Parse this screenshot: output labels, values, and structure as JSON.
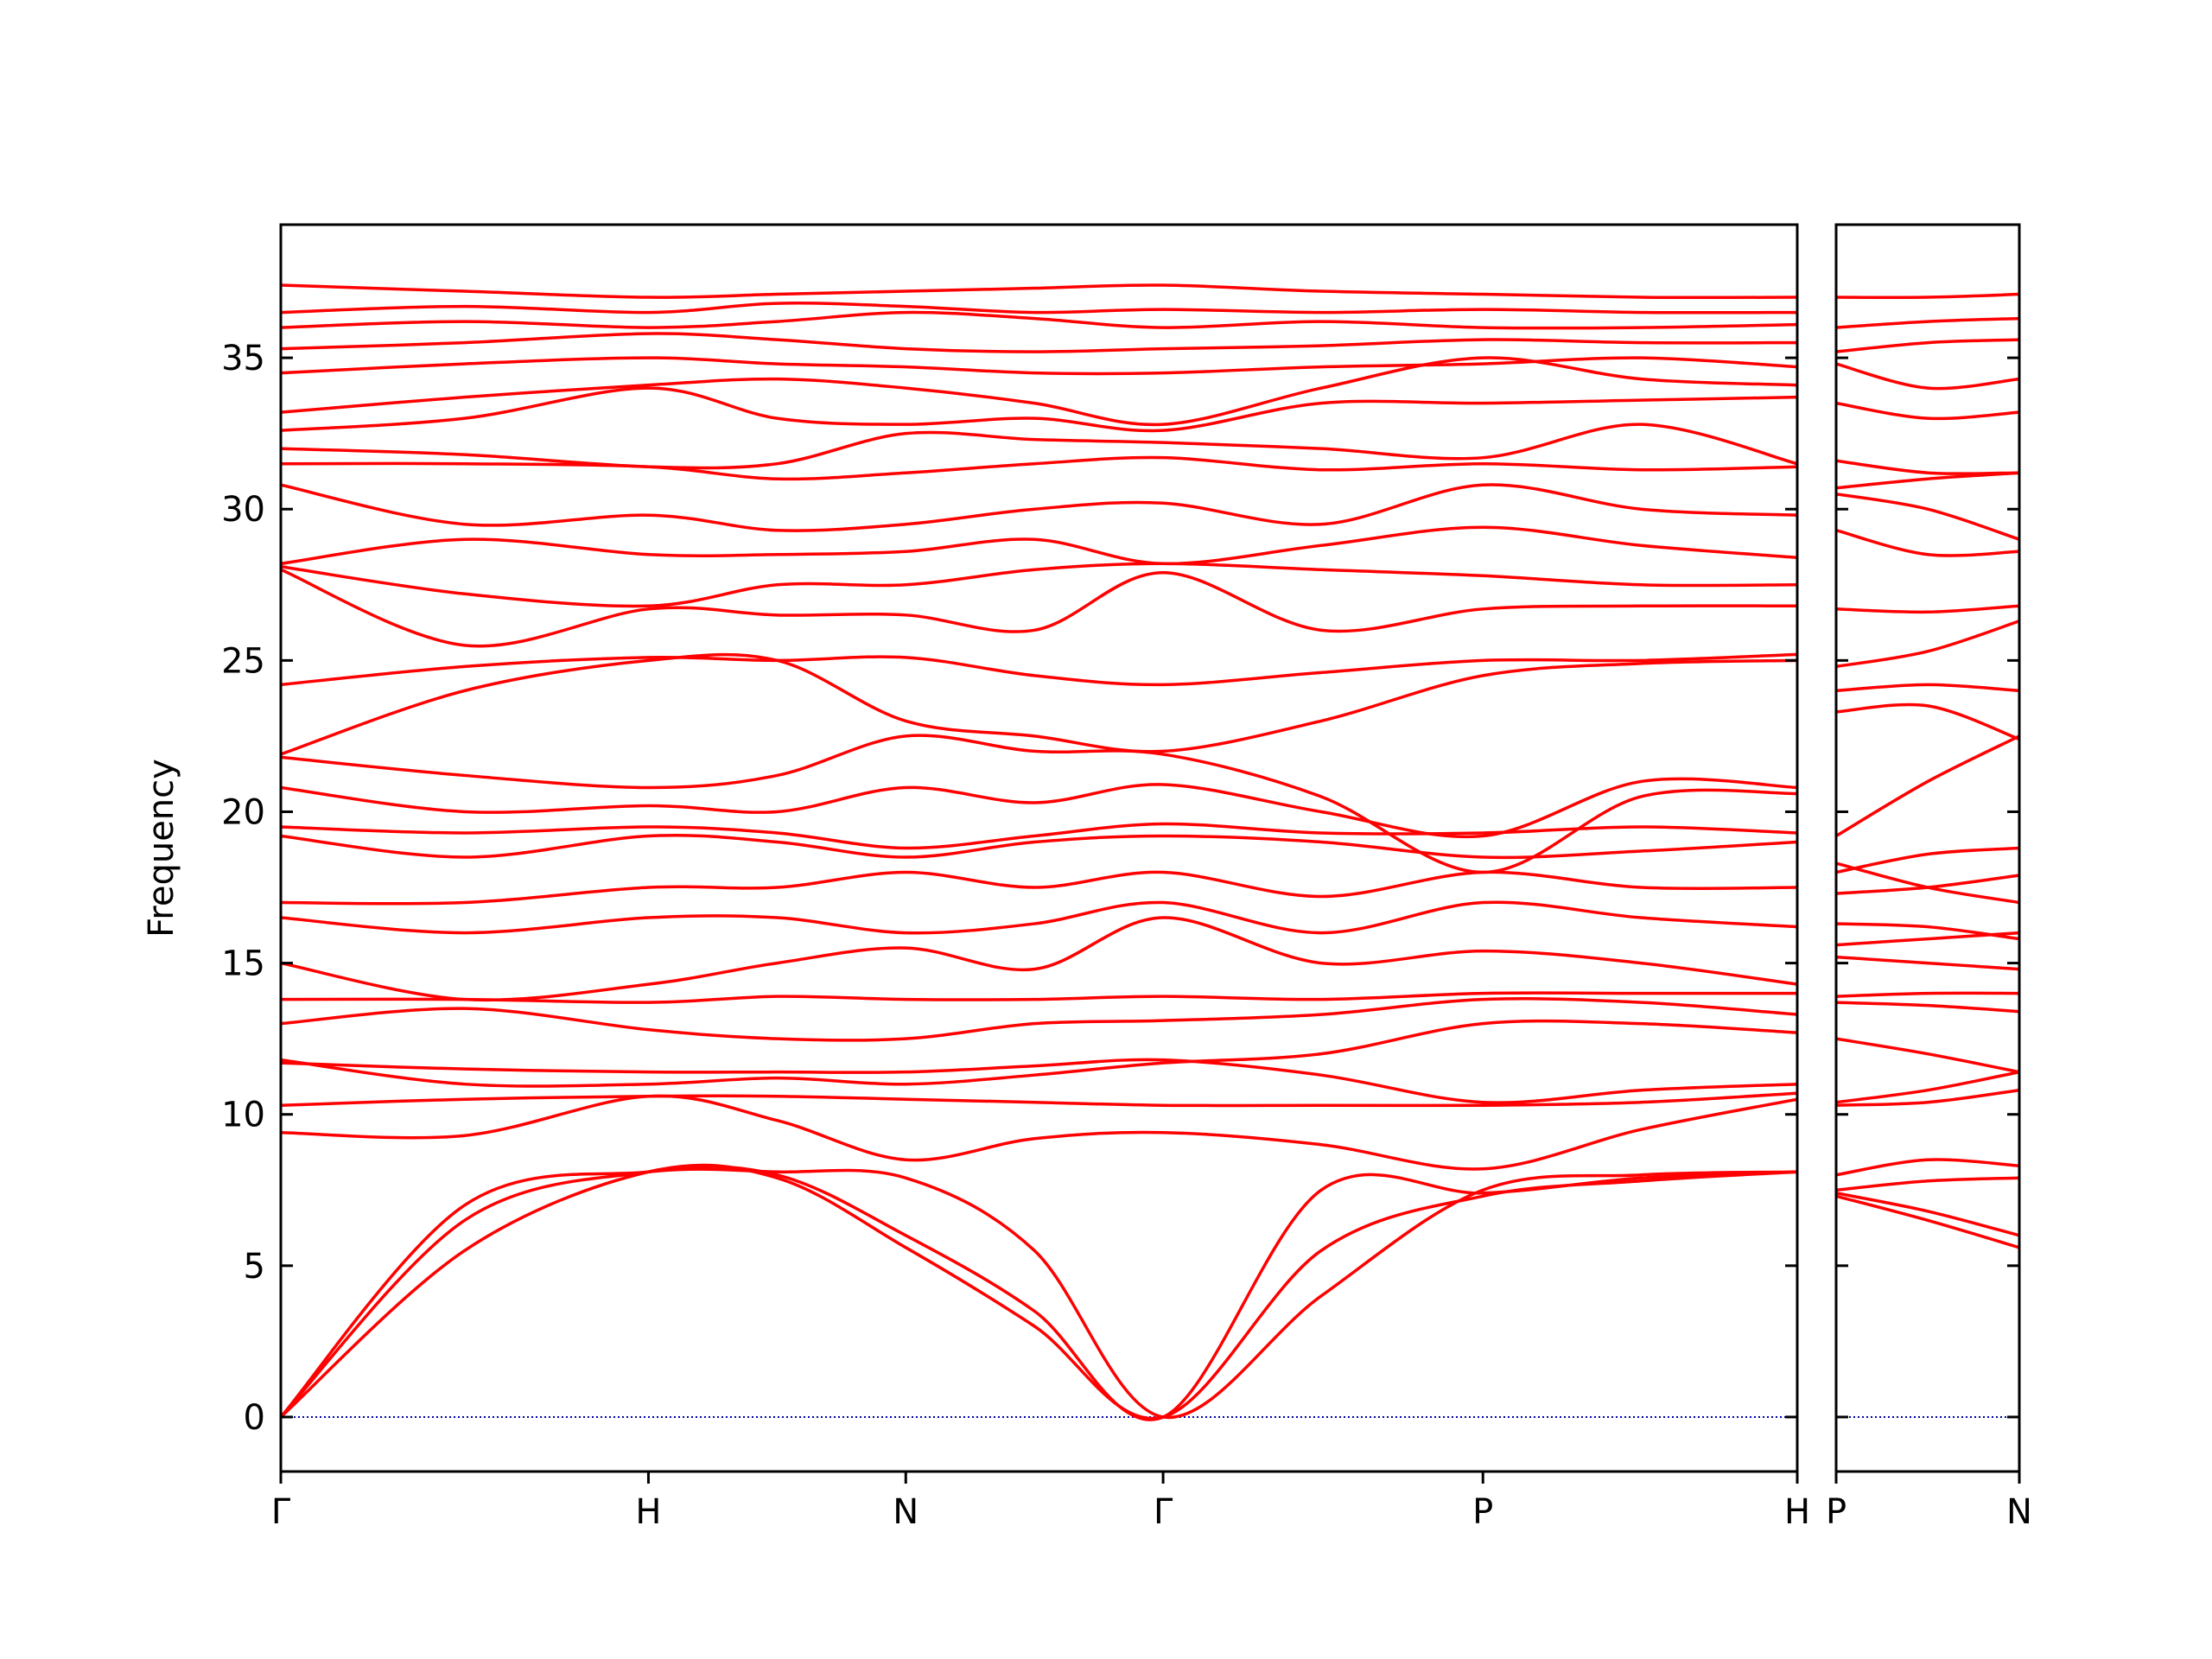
{
  "chart_data": [
    {
      "type": "line",
      "ylabel": "Frequency",
      "color": "#ff0000",
      "zero_line": true,
      "show_ytick_labels": true,
      "xlim": [
        0,
        4.125
      ],
      "ylim": [
        -1.8,
        39.4
      ],
      "xticks": [
        {
          "value": 0,
          "label": "Γ"
        },
        {
          "value": 1.0,
          "label": "H"
        },
        {
          "value": 1.7,
          "label": "N"
        },
        {
          "value": 2.4,
          "label": "Γ"
        },
        {
          "value": 3.27,
          "label": "P"
        },
        {
          "value": 4.125,
          "label": "H"
        }
      ],
      "yticks": [
        0,
        5,
        10,
        15,
        20,
        25,
        30,
        35
      ],
      "x": [
        0,
        0.5,
        1.0,
        1.35,
        1.7,
        2.05,
        2.4,
        2.83,
        3.27,
        3.7,
        4.125
      ],
      "series": [
        {
          "values": [
            0,
            5.5,
            8.1,
            7.9,
            5.6,
            3.0,
            0,
            5.5,
            7.3,
            7.8,
            8.1
          ]
        },
        {
          "values": [
            0,
            6.5,
            8.1,
            8.0,
            6.0,
            3.5,
            0,
            7.5,
            7.4,
            7.9,
            8.1
          ]
        },
        {
          "values": [
            0,
            7.0,
            8.1,
            8.1,
            7.9,
            5.5,
            0,
            4.0,
            7.5,
            8.0,
            8.1
          ]
        },
        {
          "values": [
            9.4,
            9.3,
            10.6,
            9.8,
            8.5,
            9.2,
            9.4,
            9.0,
            8.2,
            9.5,
            10.5
          ]
        },
        {
          "values": [
            10.3,
            10.5,
            10.6,
            10.6,
            10.5,
            10.4,
            10.3,
            10.3,
            10.3,
            10.4,
            10.7
          ]
        },
        {
          "values": [
            11.7,
            11.5,
            11.4,
            11.4,
            11.4,
            11.6,
            11.8,
            11.3,
            10.4,
            10.8,
            11.0
          ]
        },
        {
          "values": [
            11.8,
            11.0,
            11.0,
            11.2,
            11.0,
            11.3,
            11.7,
            12.0,
            13.0,
            13.0,
            12.7
          ]
        },
        {
          "values": [
            13.0,
            13.5,
            12.8,
            12.5,
            12.5,
            13.0,
            13.1,
            13.3,
            13.8,
            13.7,
            13.3
          ]
        },
        {
          "values": [
            13.8,
            13.8,
            13.7,
            13.9,
            13.8,
            13.8,
            13.9,
            13.8,
            14.0,
            14.0,
            14.0
          ]
        },
        {
          "values": [
            15.0,
            13.8,
            14.3,
            15.0,
            15.5,
            14.8,
            16.5,
            15.0,
            15.4,
            15.0,
            14.3
          ]
        },
        {
          "values": [
            16.5,
            16.0,
            16.5,
            16.5,
            16.0,
            16.3,
            17.0,
            16.0,
            17.0,
            16.5,
            16.2
          ]
        },
        {
          "values": [
            17.0,
            17.0,
            17.5,
            17.5,
            18.0,
            17.5,
            18.0,
            17.2,
            18.0,
            17.5,
            17.5
          ]
        },
        {
          "values": [
            19.2,
            18.5,
            19.2,
            19.0,
            18.5,
            19.0,
            19.2,
            19.0,
            18.5,
            18.7,
            19.0
          ]
        },
        {
          "values": [
            19.5,
            19.3,
            19.5,
            19.3,
            18.8,
            19.2,
            19.6,
            19.3,
            19.3,
            19.5,
            19.3
          ]
        },
        {
          "values": [
            20.8,
            20.0,
            20.2,
            20.0,
            20.8,
            20.3,
            20.9,
            20.0,
            19.2,
            21.0,
            20.8
          ]
        },
        {
          "values": [
            21.8,
            21.2,
            20.8,
            21.2,
            22.5,
            22.0,
            21.9,
            20.5,
            18.0,
            20.5,
            20.6
          ]
        },
        {
          "values": [
            21.9,
            24.0,
            25.0,
            25.0,
            23.0,
            22.5,
            22.0,
            23.0,
            24.5,
            24.9,
            25.0
          ]
        },
        {
          "values": [
            24.2,
            24.8,
            25.1,
            25.0,
            25.1,
            24.5,
            24.2,
            24.6,
            25.0,
            25.0,
            25.2
          ]
        },
        {
          "values": [
            28.0,
            25.5,
            26.7,
            26.5,
            26.5,
            26.0,
            27.9,
            26.0,
            26.7,
            26.8,
            26.8
          ]
        },
        {
          "values": [
            28.1,
            27.2,
            26.8,
            27.5,
            27.5,
            28.0,
            28.2,
            28.0,
            27.8,
            27.5,
            27.5
          ]
        },
        {
          "values": [
            28.2,
            29.0,
            28.5,
            28.5,
            28.6,
            29.0,
            28.2,
            28.8,
            29.4,
            28.8,
            28.4
          ]
        },
        {
          "values": [
            30.8,
            29.5,
            29.8,
            29.3,
            29.5,
            30.0,
            30.2,
            29.5,
            30.8,
            30.0,
            29.8
          ]
        },
        {
          "values": [
            31.5,
            31.5,
            31.4,
            31.0,
            31.2,
            31.5,
            31.7,
            31.3,
            31.5,
            31.3,
            31.4
          ]
        },
        {
          "values": [
            32.0,
            31.8,
            31.4,
            31.5,
            32.5,
            32.3,
            32.2,
            32.0,
            31.7,
            32.8,
            31.5
          ]
        },
        {
          "values": [
            32.6,
            33.0,
            34.0,
            33.0,
            32.8,
            33.0,
            32.6,
            33.5,
            33.5,
            33.6,
            33.7
          ]
        },
        {
          "values": [
            33.2,
            33.7,
            34.1,
            34.3,
            34.0,
            33.5,
            32.8,
            34.0,
            35.0,
            34.3,
            34.1
          ]
        },
        {
          "values": [
            34.5,
            34.8,
            35.0,
            34.8,
            34.7,
            34.5,
            34.5,
            34.7,
            34.8,
            35.0,
            34.7
          ]
        },
        {
          "values": [
            35.3,
            35.5,
            35.8,
            35.6,
            35.3,
            35.2,
            35.3,
            35.4,
            35.6,
            35.5,
            35.5
          ]
        },
        {
          "values": [
            36.0,
            36.2,
            36.0,
            36.2,
            36.5,
            36.3,
            36.0,
            36.2,
            36.0,
            36.0,
            36.1
          ]
        },
        {
          "values": [
            36.5,
            36.7,
            36.5,
            36.8,
            36.7,
            36.5,
            36.6,
            36.5,
            36.6,
            36.5,
            36.5
          ]
        },
        {
          "values": [
            37.4,
            37.2,
            37.0,
            37.1,
            37.2,
            37.3,
            37.4,
            37.2,
            37.1,
            37.0,
            37.0
          ]
        }
      ]
    },
    {
      "type": "line",
      "color": "#ff0000",
      "zero_line": true,
      "show_ytick_labels": false,
      "xlim": [
        0,
        0.5
      ],
      "ylim": [
        -1.8,
        39.4
      ],
      "xticks": [
        {
          "value": 0,
          "label": "P"
        },
        {
          "value": 0.5,
          "label": "N"
        }
      ],
      "yticks": [
        0,
        5,
        10,
        15,
        20,
        25,
        30,
        35
      ],
      "x": [
        0,
        0.25,
        0.5
      ],
      "series": [
        {
          "values": [
            7.3,
            6.5,
            5.6
          ]
        },
        {
          "values": [
            7.4,
            6.8,
            6.0
          ]
        },
        {
          "values": [
            7.5,
            7.8,
            7.9
          ]
        },
        {
          "values": [
            8.0,
            8.5,
            8.3
          ]
        },
        {
          "values": [
            10.3,
            10.4,
            10.8
          ]
        },
        {
          "values": [
            10.4,
            10.8,
            11.4
          ]
        },
        {
          "values": [
            12.5,
            12.0,
            11.4
          ]
        },
        {
          "values": [
            13.7,
            13.6,
            13.4
          ]
        },
        {
          "values": [
            13.9,
            14.0,
            14.0
          ]
        },
        {
          "values": [
            15.2,
            15.0,
            14.8
          ]
        },
        {
          "values": [
            15.6,
            15.8,
            16.0
          ]
        },
        {
          "values": [
            16.3,
            16.2,
            15.8
          ]
        },
        {
          "values": [
            17.3,
            17.5,
            17.9
          ]
        },
        {
          "values": [
            18.0,
            18.6,
            18.8
          ]
        },
        {
          "values": [
            18.3,
            17.5,
            17.0
          ]
        },
        {
          "values": [
            19.2,
            21.0,
            22.5
          ]
        },
        {
          "values": [
            23.3,
            23.5,
            22.4
          ]
        },
        {
          "values": [
            24.0,
            24.2,
            24.0
          ]
        },
        {
          "values": [
            24.8,
            25.3,
            26.3
          ]
        },
        {
          "values": [
            26.7,
            26.6,
            26.8
          ]
        },
        {
          "values": [
            29.3,
            28.5,
            28.6
          ]
        },
        {
          "values": [
            30.5,
            30.0,
            29.0
          ]
        },
        {
          "values": [
            30.7,
            31.0,
            31.2
          ]
        },
        {
          "values": [
            31.6,
            31.2,
            31.2
          ]
        },
        {
          "values": [
            33.5,
            33.0,
            33.2
          ]
        },
        {
          "values": [
            34.8,
            34.0,
            34.3
          ]
        },
        {
          "values": [
            35.2,
            35.5,
            35.6
          ]
        },
        {
          "values": [
            36.0,
            36.2,
            36.3
          ]
        },
        {
          "values": [
            37.0,
            37.0,
            37.1
          ]
        }
      ]
    }
  ]
}
